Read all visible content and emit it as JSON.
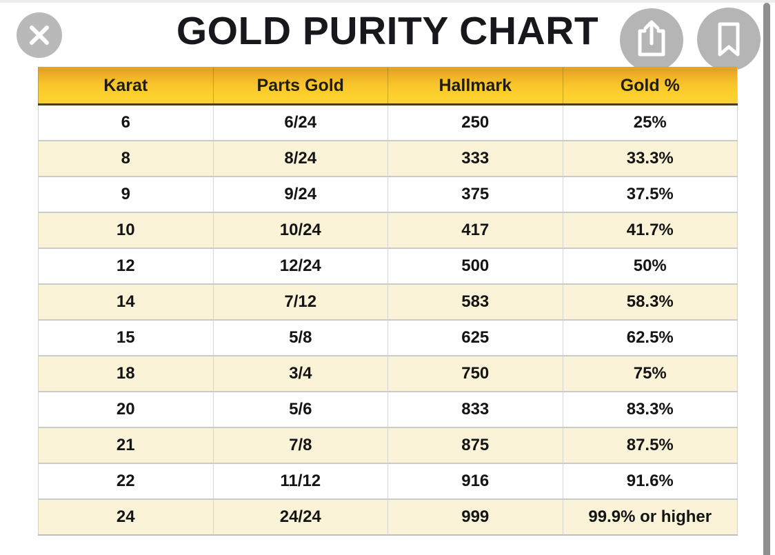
{
  "title": "GOLD PURITY CHART",
  "toolbar": {
    "close_button": "close",
    "share_button": "share",
    "bookmark_button": "bookmark"
  },
  "colors": {
    "header_gold_top": "#dd9c28",
    "header_gold_bottom": "#fdd22d",
    "header_underline": "#45400f",
    "row_cream": "#faf3d8",
    "row_white": "#fefefe",
    "row_border_gray": "#cbcbcb",
    "button_gray": "#b5b5b5",
    "scrollbar_gray": "#8f8f8f",
    "title_black": "#18181c"
  },
  "table": {
    "headers": [
      "Karat",
      "Parts Gold",
      "Hallmark",
      "Gold %"
    ],
    "rows": [
      [
        "6",
        "6/24",
        "250",
        "25%"
      ],
      [
        "8",
        "8/24",
        "333",
        "33.3%"
      ],
      [
        "9",
        "9/24",
        "375",
        "37.5%"
      ],
      [
        "10",
        "10/24",
        "417",
        "41.7%"
      ],
      [
        "12",
        "12/24",
        "500",
        "50%"
      ],
      [
        "14",
        "7/12",
        "583",
        "58.3%"
      ],
      [
        "15",
        "5/8",
        "625",
        "62.5%"
      ],
      [
        "18",
        "3/4",
        "750",
        "75%"
      ],
      [
        "20",
        "5/6",
        "833",
        "83.3%"
      ],
      [
        "21",
        "7/8",
        "875",
        "87.5%"
      ],
      [
        "22",
        "11/12",
        "916",
        "91.6%"
      ],
      [
        "24",
        "24/24",
        "999",
        "99.9% or higher"
      ]
    ]
  },
  "chart_data": {
    "type": "table",
    "title": "GOLD PURITY CHART",
    "columns": [
      "Karat",
      "Parts Gold",
      "Hallmark",
      "Gold %"
    ],
    "rows": [
      [
        6,
        "6/24",
        250,
        "25%"
      ],
      [
        8,
        "8/24",
        333,
        "33.3%"
      ],
      [
        9,
        "9/24",
        375,
        "37.5%"
      ],
      [
        10,
        "10/24",
        417,
        "41.7%"
      ],
      [
        12,
        "12/24",
        500,
        "50%"
      ],
      [
        14,
        "7/12",
        583,
        "58.3%"
      ],
      [
        15,
        "5/8",
        625,
        "62.5%"
      ],
      [
        18,
        "3/4",
        750,
        "75%"
      ],
      [
        20,
        "5/6",
        833,
        "83.3%"
      ],
      [
        21,
        "7/8",
        875,
        "87.5%"
      ],
      [
        22,
        "11/12",
        916,
        "91.6%"
      ],
      [
        24,
        "24/24",
        999,
        "99.9% or higher"
      ]
    ]
  }
}
